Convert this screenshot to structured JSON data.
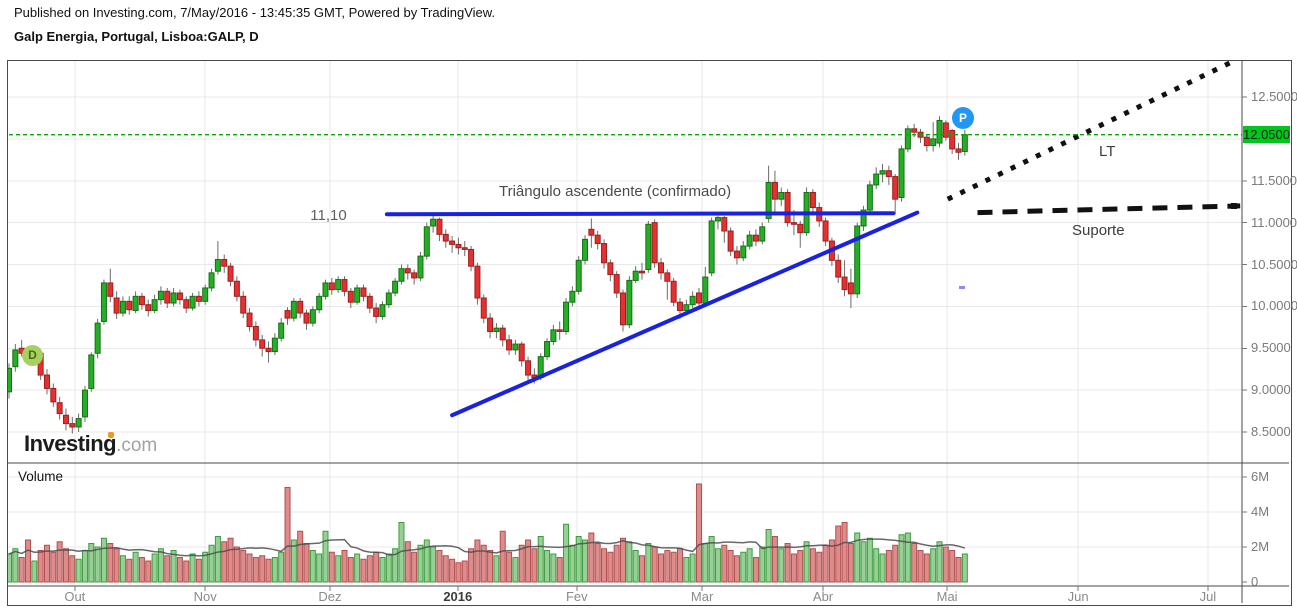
{
  "header": {
    "published_line": "Published on Investing.com, 7/May/2016 - 13:45:35 GMT, Powered by TradingView.",
    "instrument_line": "Galp Energia, Portugal, Lisboa:GALP, D"
  },
  "logo": {
    "brand": "Investing",
    "suffix": ".com"
  },
  "badges": {
    "interval": "D",
    "publish": "P"
  },
  "chart_data": {
    "type": "candlestick",
    "title": "Galp Energia, Portugal, Lisboa:GALP, D",
    "interval": "D",
    "grid": true,
    "price_axis": {
      "range": [
        8.3,
        12.95
      ],
      "ticks": [
        {
          "label": "12.5000",
          "value": 12.5
        },
        {
          "label": "11.5000",
          "value": 11.5
        },
        {
          "label": "11.0000",
          "value": 11.0
        },
        {
          "label": "10.5000",
          "value": 10.5
        },
        {
          "label": "10.0000",
          "value": 10.0
        },
        {
          "label": "9.5000",
          "value": 9.5
        },
        {
          "label": "9.0000",
          "value": 9.0
        },
        {
          "label": "8.5000",
          "value": 8.5
        }
      ],
      "current_price": {
        "label": "12.0500",
        "value": 12.05
      }
    },
    "x_axis": {
      "ticks": [
        {
          "label": "Out",
          "i": 10.4,
          "strong": false
        },
        {
          "label": "Nov",
          "i": 31.0,
          "strong": false
        },
        {
          "label": "Dez",
          "i": 50.7,
          "strong": false
        },
        {
          "label": "2016",
          "i": 70.9,
          "strong": true
        },
        {
          "label": "Fev",
          "i": 89.7,
          "strong": false
        },
        {
          "label": "Mar",
          "i": 109.5,
          "strong": false
        },
        {
          "label": "Abr",
          "i": 128.6,
          "strong": false
        },
        {
          "label": "Mai",
          "i": 148.2,
          "strong": false
        },
        {
          "label": "Jun",
          "i": 168.9,
          "strong": false
        },
        {
          "label": "Jul",
          "i": 189.4,
          "strong": false
        }
      ]
    },
    "volume_axis": {
      "ticks": [
        {
          "label": "6M",
          "value": 6
        },
        {
          "label": "4M",
          "value": 4
        },
        {
          "label": "2M",
          "value": 2
        },
        {
          "label": "0",
          "value": 0
        }
      ]
    },
    "pane_labels": {
      "volume": "Volume"
    },
    "annotations": {
      "resistance": {
        "label": "11,10",
        "caption": "Triângulo ascendente (confirmado)",
        "price": 11.1,
        "i1": 59.7,
        "i2": 139.7
      },
      "ascending": {
        "i1": 70.0,
        "p1": 8.7,
        "i2": 143.5,
        "p2": 11.12
      },
      "lt": {
        "label": "LT",
        "i1": 148.3,
        "p1": 11.28,
        "i2": 193.5,
        "p2": 12.93
      },
      "suporte": {
        "label": "Suporte",
        "i1": 153.0,
        "p1": 11.12,
        "i2": 194.5,
        "p2": 11.2
      },
      "current_price_line": 12.05
    },
    "colors": {
      "up": "#27ae27",
      "up_border": "#147014",
      "down": "#e53030",
      "down_border": "#9e1f1f",
      "wick": "#6b6b6b",
      "vol_up": "#97d097",
      "vol_up_border": "#3e9c3e",
      "vol_down": "#de8b8b",
      "vol_down_border": "#b05050",
      "trendline": "#1822e0",
      "projection": "#111111",
      "price_line": "#00a800",
      "price_tag_bg": "#00c51e",
      "grid": "#e9e9e9",
      "frame": "#4a4a4a",
      "vol_ma": "#4d4d4d"
    },
    "candles": [
      [
        8.98,
        9.32,
        8.9,
        9.26
      ],
      [
        9.28,
        9.55,
        9.22,
        9.48
      ],
      [
        9.5,
        9.6,
        9.4,
        9.44
      ],
      [
        9.46,
        9.52,
        9.33,
        9.4
      ],
      [
        9.38,
        9.5,
        9.32,
        9.45
      ],
      [
        9.44,
        9.48,
        9.12,
        9.18
      ],
      [
        9.18,
        9.25,
        8.95,
        9.02
      ],
      [
        9.02,
        9.08,
        8.8,
        8.86
      ],
      [
        8.85,
        8.92,
        8.65,
        8.72
      ],
      [
        8.7,
        8.78,
        8.52,
        8.6
      ],
      [
        8.6,
        8.68,
        8.48,
        8.56
      ],
      [
        8.56,
        8.72,
        8.5,
        8.66
      ],
      [
        8.68,
        9.05,
        8.62,
        9.0
      ],
      [
        9.02,
        9.45,
        8.98,
        9.42
      ],
      [
        9.44,
        9.85,
        9.38,
        9.8
      ],
      [
        9.82,
        10.32,
        9.78,
        10.28
      ],
      [
        10.28,
        10.45,
        10.05,
        10.12
      ],
      [
        10.1,
        10.18,
        9.85,
        9.92
      ],
      [
        9.92,
        10.12,
        9.88,
        10.06
      ],
      [
        10.06,
        10.12,
        9.9,
        9.96
      ],
      [
        9.95,
        10.18,
        9.92,
        10.12
      ],
      [
        10.12,
        10.16,
        9.96,
        10.02
      ],
      [
        10.02,
        10.08,
        9.88,
        9.95
      ],
      [
        9.95,
        10.14,
        9.92,
        10.08
      ],
      [
        10.08,
        10.24,
        10.02,
        10.18
      ],
      [
        10.18,
        10.22,
        9.98,
        10.04
      ],
      [
        10.04,
        10.22,
        10.0,
        10.16
      ],
      [
        10.16,
        10.2,
        10.02,
        10.08
      ],
      [
        10.08,
        10.12,
        9.92,
        9.98
      ],
      [
        9.98,
        10.16,
        9.95,
        10.12
      ],
      [
        10.12,
        10.18,
        10.0,
        10.06
      ],
      [
        10.06,
        10.26,
        10.02,
        10.22
      ],
      [
        10.22,
        10.45,
        10.18,
        10.4
      ],
      [
        10.42,
        10.78,
        10.38,
        10.56
      ],
      [
        10.56,
        10.62,
        10.4,
        10.48
      ],
      [
        10.48,
        10.52,
        10.24,
        10.3
      ],
      [
        10.3,
        10.36,
        10.06,
        10.12
      ],
      [
        10.12,
        10.18,
        9.86,
        9.92
      ],
      [
        9.92,
        9.98,
        9.7,
        9.76
      ],
      [
        9.76,
        9.82,
        9.52,
        9.6
      ],
      [
        9.6,
        9.66,
        9.4,
        9.5
      ],
      [
        9.5,
        9.58,
        9.33,
        9.46
      ],
      [
        9.46,
        9.68,
        9.42,
        9.62
      ],
      [
        9.62,
        9.86,
        9.58,
        9.8
      ],
      [
        9.95,
        9.99,
        9.78,
        9.86
      ],
      [
        9.86,
        10.1,
        9.82,
        10.06
      ],
      [
        10.06,
        10.1,
        9.86,
        9.92
      ],
      [
        9.92,
        9.96,
        9.72,
        9.8
      ],
      [
        9.8,
        10.0,
        9.76,
        9.96
      ],
      [
        9.96,
        10.16,
        9.92,
        10.12
      ],
      [
        10.12,
        10.32,
        10.08,
        10.28
      ],
      [
        10.28,
        10.34,
        10.14,
        10.2
      ],
      [
        10.2,
        10.36,
        10.16,
        10.32
      ],
      [
        10.32,
        10.36,
        10.12,
        10.18
      ],
      [
        10.18,
        10.22,
        9.98,
        10.05
      ],
      [
        10.05,
        10.26,
        10.02,
        10.22
      ],
      [
        10.22,
        10.26,
        10.06,
        10.12
      ],
      [
        10.12,
        10.16,
        9.92,
        9.98
      ],
      [
        9.98,
        10.04,
        9.8,
        9.88
      ],
      [
        9.88,
        10.06,
        9.84,
        10.02
      ],
      [
        10.02,
        10.2,
        9.98,
        10.16
      ],
      [
        10.16,
        10.34,
        10.12,
        10.3
      ],
      [
        10.3,
        10.5,
        10.26,
        10.45
      ],
      [
        10.45,
        10.5,
        10.32,
        10.4
      ],
      [
        10.4,
        10.44,
        10.26,
        10.34
      ],
      [
        10.34,
        10.65,
        10.3,
        10.6
      ],
      [
        10.6,
        11.0,
        10.56,
        10.95
      ],
      [
        10.96,
        11.08,
        10.88,
        11.04
      ],
      [
        11.04,
        11.06,
        10.78,
        10.86
      ],
      [
        10.86,
        10.92,
        10.7,
        10.78
      ],
      [
        10.78,
        10.84,
        10.64,
        10.74
      ],
      [
        10.74,
        10.82,
        10.62,
        10.7
      ],
      [
        10.7,
        10.78,
        10.6,
        10.68
      ],
      [
        10.68,
        10.72,
        10.42,
        10.48
      ],
      [
        10.48,
        10.52,
        10.02,
        10.1
      ],
      [
        10.1,
        10.14,
        9.8,
        9.86
      ],
      [
        9.86,
        9.92,
        9.62,
        9.7
      ],
      [
        9.7,
        9.8,
        9.62,
        9.74
      ],
      [
        9.74,
        9.78,
        9.52,
        9.6
      ],
      [
        9.6,
        9.66,
        9.42,
        9.48
      ],
      [
        9.48,
        9.6,
        9.42,
        9.55
      ],
      [
        9.55,
        9.58,
        9.28,
        9.35
      ],
      [
        9.35,
        9.4,
        9.1,
        9.18
      ],
      [
        9.18,
        9.26,
        9.08,
        9.15
      ],
      [
        9.15,
        9.44,
        9.12,
        9.4
      ],
      [
        9.4,
        9.62,
        9.36,
        9.58
      ],
      [
        9.58,
        9.78,
        9.54,
        9.72
      ],
      [
        9.72,
        9.82,
        9.6,
        9.7
      ],
      [
        9.7,
        10.1,
        9.66,
        10.05
      ],
      [
        10.05,
        10.24,
        10.0,
        10.18
      ],
      [
        10.18,
        10.6,
        10.14,
        10.55
      ],
      [
        10.55,
        10.85,
        10.5,
        10.8
      ],
      [
        10.92,
        11.05,
        10.7,
        10.85
      ],
      [
        10.85,
        10.9,
        10.68,
        10.75
      ],
      [
        10.75,
        10.8,
        10.45,
        10.52
      ],
      [
        10.52,
        10.56,
        10.3,
        10.38
      ],
      [
        10.38,
        10.42,
        10.1,
        10.16
      ],
      [
        10.16,
        10.2,
        9.7,
        9.78
      ],
      [
        9.78,
        10.36,
        9.74,
        10.31
      ],
      [
        10.31,
        10.48,
        10.28,
        10.42
      ],
      [
        10.42,
        10.52,
        10.32,
        10.4
      ],
      [
        10.44,
        11.02,
        10.4,
        10.98
      ],
      [
        11.0,
        11.04,
        10.46,
        10.52
      ],
      [
        10.52,
        10.58,
        10.32,
        10.4
      ],
      [
        10.4,
        10.44,
        10.08,
        10.3
      ],
      [
        10.3,
        10.34,
        10.0,
        10.05
      ],
      [
        10.05,
        10.1,
        9.85,
        9.95
      ],
      [
        9.95,
        10.08,
        9.9,
        10.02
      ],
      [
        10.02,
        10.18,
        9.98,
        10.12
      ],
      [
        10.16,
        10.22,
        9.98,
        10.04
      ],
      [
        10.04,
        10.47,
        10.0,
        10.35
      ],
      [
        10.4,
        11.06,
        10.36,
        11.02
      ],
      [
        11.02,
        11.08,
        10.92,
        11.06
      ],
      [
        11.06,
        11.08,
        10.76,
        10.9
      ],
      [
        10.9,
        10.94,
        10.6,
        10.66
      ],
      [
        10.66,
        10.72,
        10.5,
        10.58
      ],
      [
        10.58,
        10.78,
        10.54,
        10.72
      ],
      [
        10.72,
        10.9,
        10.68,
        10.85
      ],
      [
        10.85,
        10.92,
        10.72,
        10.78
      ],
      [
        10.78,
        11.0,
        10.74,
        10.95
      ],
      [
        11.05,
        11.68,
        11.0,
        11.48
      ],
      [
        11.48,
        11.62,
        11.12,
        11.28
      ],
      [
        11.28,
        11.42,
        11.2,
        11.36
      ],
      [
        11.36,
        11.4,
        10.95,
        11.0
      ],
      [
        11.0,
        11.15,
        10.85,
        10.98
      ],
      [
        10.98,
        11.02,
        10.7,
        10.88
      ],
      [
        10.88,
        11.42,
        10.84,
        11.36
      ],
      [
        11.36,
        11.4,
        11.1,
        11.18
      ],
      [
        11.18,
        11.24,
        10.95,
        11.02
      ],
      [
        11.02,
        11.06,
        10.72,
        10.78
      ],
      [
        10.78,
        10.82,
        10.48,
        10.55
      ],
      [
        10.55,
        10.62,
        10.28,
        10.35
      ],
      [
        10.35,
        10.55,
        10.12,
        10.2
      ],
      [
        10.28,
        10.45,
        9.98,
        10.15
      ],
      [
        10.15,
        11.0,
        10.1,
        10.96
      ],
      [
        10.96,
        11.2,
        10.9,
        11.15
      ],
      [
        11.15,
        11.5,
        11.1,
        11.45
      ],
      [
        11.45,
        11.66,
        11.4,
        11.58
      ],
      [
        11.58,
        11.7,
        11.48,
        11.62
      ],
      [
        11.62,
        11.68,
        11.45,
        11.55
      ],
      [
        11.55,
        11.58,
        11.1,
        11.28
      ],
      [
        11.3,
        11.92,
        11.25,
        11.88
      ],
      [
        11.88,
        12.16,
        11.84,
        12.12
      ],
      [
        12.12,
        12.18,
        12.02,
        12.08
      ],
      [
        12.08,
        12.12,
        11.95,
        12.02
      ],
      [
        12.02,
        12.06,
        11.85,
        11.92
      ],
      [
        11.92,
        12.2,
        11.85,
        12.0
      ],
      [
        11.95,
        12.27,
        11.9,
        12.22
      ],
      [
        12.19,
        12.22,
        11.98,
        12.02
      ],
      [
        12.1,
        12.12,
        11.82,
        11.88
      ],
      [
        11.88,
        11.95,
        11.75,
        11.84
      ],
      [
        11.85,
        12.16,
        11.8,
        12.05
      ]
    ],
    "volumes": [
      1.6,
      1.9,
      1.4,
      2.4,
      1.2,
      1.8,
      2.1,
      1.7,
      2.3,
      1.9,
      1.5,
      1.3,
      1.8,
      2.2,
      2.0,
      2.5,
      2.2,
      1.9,
      1.5,
      1.3,
      1.7,
      1.4,
      1.2,
      1.6,
      1.9,
      1.5,
      1.8,
      1.4,
      1.2,
      1.6,
      1.3,
      1.7,
      2.1,
      2.6,
      2.3,
      2.5,
      2.0,
      1.8,
      1.6,
      1.4,
      1.5,
      1.3,
      1.4,
      1.7,
      5.4,
      2.4,
      2.9,
      2.2,
      1.8,
      1.6,
      2.9,
      1.7,
      1.5,
      1.8,
      1.4,
      1.6,
      1.3,
      1.5,
      1.7,
      1.4,
      1.6,
      1.9,
      3.4,
      2.3,
      1.7,
      2.1,
      2.4,
      2.0,
      1.8,
      1.5,
      1.3,
      1.1,
      1.2,
      1.9,
      2.4,
      2.1,
      1.8,
      1.5,
      2.9,
      1.7,
      1.4,
      2.1,
      2.4,
      1.9,
      2.6,
      1.8,
      1.6,
      1.4,
      3.3,
      2.1,
      2.6,
      2.4,
      2.8,
      2.2,
      1.9,
      1.7,
      2.1,
      2.5,
      2.3,
      1.8,
      1.5,
      2.2,
      2.0,
      1.6,
      1.8,
      1.7,
      1.9,
      1.4,
      1.6,
      5.6,
      2.2,
      2.6,
      1.9,
      2.1,
      1.8,
      1.5,
      1.7,
      1.9,
      1.4,
      2.0,
      3.0,
      2.6,
      1.9,
      2.2,
      1.6,
      1.8,
      2.3,
      1.9,
      1.7,
      2.1,
      2.4,
      3.2,
      3.4,
      2.2,
      2.8,
      2.3,
      2.5,
      1.9,
      1.6,
      1.8,
      2.1,
      2.7,
      2.8,
      2.2,
      1.8,
      1.6,
      1.9,
      2.3,
      2.0,
      1.8,
      1.4,
      1.6
    ]
  }
}
